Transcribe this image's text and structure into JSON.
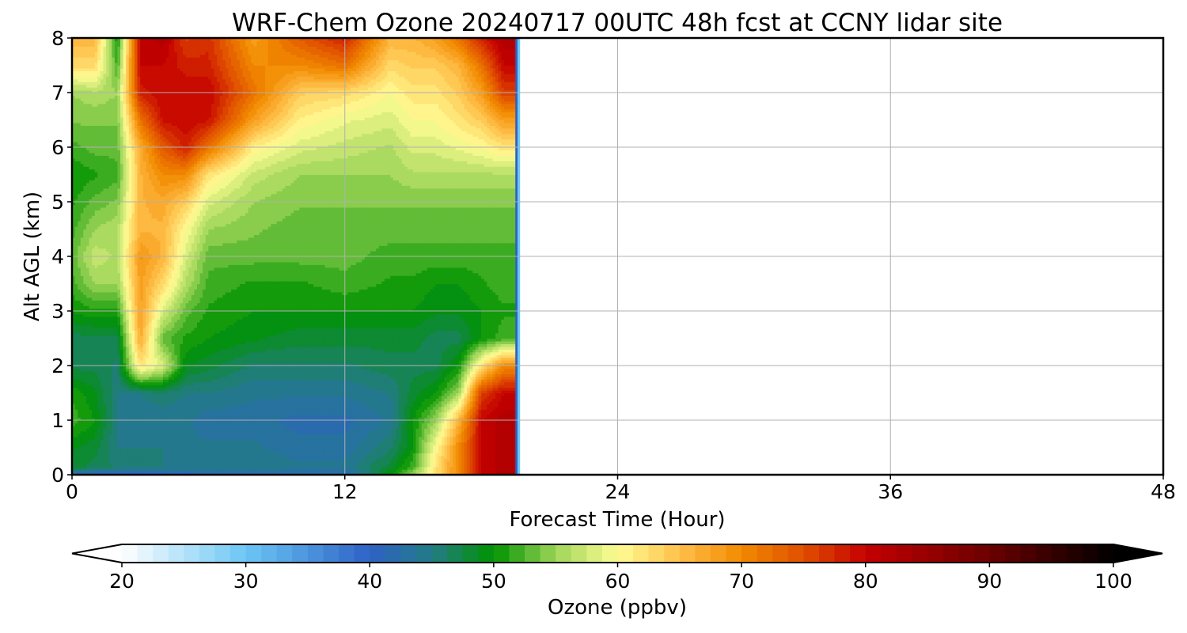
{
  "chart_data": {
    "type": "heatmap",
    "title": "WRF-Chem Ozone  20240717 00UTC 48h fcst at CCNY lidar site",
    "xlabel": "Forecast Time (Hour)",
    "ylabel": "Alt AGL (km)",
    "xlim": [
      0,
      48
    ],
    "ylim": [
      0,
      8
    ],
    "xticks": [
      "0",
      "12",
      "24",
      "36",
      "48"
    ],
    "yticks": [
      "0",
      "1",
      "2",
      "3",
      "4",
      "5",
      "6",
      "7",
      "8"
    ],
    "grid": true,
    "data_valid_until_hour": 19.5,
    "altitudes_km": [
      0,
      0.15,
      0.5,
      1,
      1.5,
      2,
      2.5,
      3,
      3.5,
      4,
      4.5,
      5,
      5.5,
      6,
      6.5,
      7,
      7.5,
      8
    ],
    "columns": [
      {
        "hour": 0,
        "ozone_ppbv": [
          42,
          48,
          49,
          52,
          51,
          47,
          47,
          50,
          52,
          53,
          52,
          51,
          50,
          52,
          54,
          55,
          63,
          66
        ]
      },
      {
        "hour": 1,
        "ozone_ppbv": [
          40,
          47,
          48,
          50,
          49,
          47,
          47,
          51,
          55,
          57,
          55,
          53,
          51,
          53,
          54,
          56,
          63,
          66
        ]
      },
      {
        "hour": 2,
        "ozone_ppbv": [
          40,
          46,
          45,
          45,
          45,
          46,
          47,
          51,
          55,
          56,
          56,
          54,
          52,
          53,
          54,
          55,
          52,
          50
        ]
      },
      {
        "hour": 3,
        "ozone_ppbv": [
          40,
          45,
          45,
          44,
          45,
          62,
          67,
          68,
          68,
          69,
          66,
          66,
          66,
          67,
          72,
          78,
          80,
          80
        ]
      },
      {
        "hour": 4,
        "ozone_ppbv": [
          40,
          45,
          45,
          44,
          46,
          58,
          53,
          58,
          63,
          66,
          66,
          67,
          70,
          74,
          79,
          80,
          80,
          82
        ]
      },
      {
        "hour": 5,
        "ozone_ppbv": [
          40,
          45,
          44,
          44,
          45,
          49,
          51,
          53,
          56,
          58,
          60,
          64,
          70,
          78,
          80,
          80,
          78,
          76
        ]
      },
      {
        "hour": 6,
        "ozone_ppbv": [
          41,
          45,
          44,
          43,
          45,
          48,
          50,
          51,
          52,
          53,
          55,
          58,
          62,
          72,
          79,
          80,
          78,
          77
        ]
      },
      {
        "hour": 8,
        "ozone_ppbv": [
          41,
          45,
          44,
          43,
          44,
          46,
          49,
          50,
          51,
          53,
          54,
          55,
          57,
          61,
          68,
          72,
          70,
          68
        ]
      },
      {
        "hour": 10,
        "ozone_ppbv": [
          41,
          44,
          43,
          42,
          44,
          46,
          48,
          50,
          51,
          53,
          53,
          54,
          55,
          58,
          61,
          64,
          70,
          74
        ]
      },
      {
        "hour": 12,
        "ozone_ppbv": [
          41,
          44,
          43,
          42,
          44,
          46,
          48,
          50,
          52,
          53,
          53,
          54,
          55,
          57,
          59,
          63,
          72,
          78
        ]
      },
      {
        "hour": 14,
        "ozone_ppbv": [
          50,
          48,
          46,
          44,
          45,
          47,
          48,
          50,
          51,
          52,
          53,
          54,
          55,
          56,
          58,
          60,
          63,
          66
        ]
      },
      {
        "hour": 15,
        "ozone_ppbv": [
          55,
          52,
          50,
          50,
          48,
          47,
          48,
          50,
          51,
          52,
          53,
          54,
          56,
          58,
          60,
          62,
          64,
          66
        ]
      },
      {
        "hour": 16,
        "ozone_ppbv": [
          62,
          62,
          60,
          55,
          50,
          47,
          47,
          49,
          50,
          52,
          53,
          54,
          56,
          58,
          60,
          62,
          64,
          68
        ]
      },
      {
        "hour": 17,
        "ozone_ppbv": [
          70,
          70,
          70,
          66,
          55,
          50,
          47,
          49,
          50,
          52,
          53,
          54,
          56,
          59,
          62,
          64,
          66,
          72
        ]
      },
      {
        "hour": 18,
        "ozone_ppbv": [
          80,
          80,
          80,
          80,
          76,
          62,
          50,
          50,
          51,
          52,
          53,
          54,
          56,
          60,
          64,
          68,
          72,
          78
        ]
      },
      {
        "hour": 19,
        "ozone_ppbv": [
          82,
          82,
          82,
          82,
          80,
          70,
          52,
          51,
          52,
          52,
          53,
          54,
          56,
          62,
          68,
          76,
          80,
          82
        ]
      }
    ],
    "colorbar": {
      "label": "Ozone  (ppbv)",
      "min": 20,
      "max": 100,
      "step": 1.25,
      "extend": "both",
      "ticks": [
        "20",
        "30",
        "40",
        "50",
        "60",
        "70",
        "80",
        "90",
        "100"
      ],
      "color_stops": [
        {
          "v": 20,
          "c": "#ffffff"
        },
        {
          "v": 30,
          "c": "#6bc6f4"
        },
        {
          "v": 40,
          "c": "#2e62c6"
        },
        {
          "v": 45,
          "c": "#237b86"
        },
        {
          "v": 50,
          "c": "#009300"
        },
        {
          "v": 55,
          "c": "#9ed558"
        },
        {
          "v": 60,
          "c": "#fffd95"
        },
        {
          "v": 66,
          "c": "#fdb43b"
        },
        {
          "v": 70,
          "c": "#f18b00"
        },
        {
          "v": 75,
          "c": "#e04e00"
        },
        {
          "v": 80,
          "c": "#c40000"
        },
        {
          "v": 90,
          "c": "#6b0000"
        },
        {
          "v": 100,
          "c": "#000000"
        }
      ]
    }
  }
}
